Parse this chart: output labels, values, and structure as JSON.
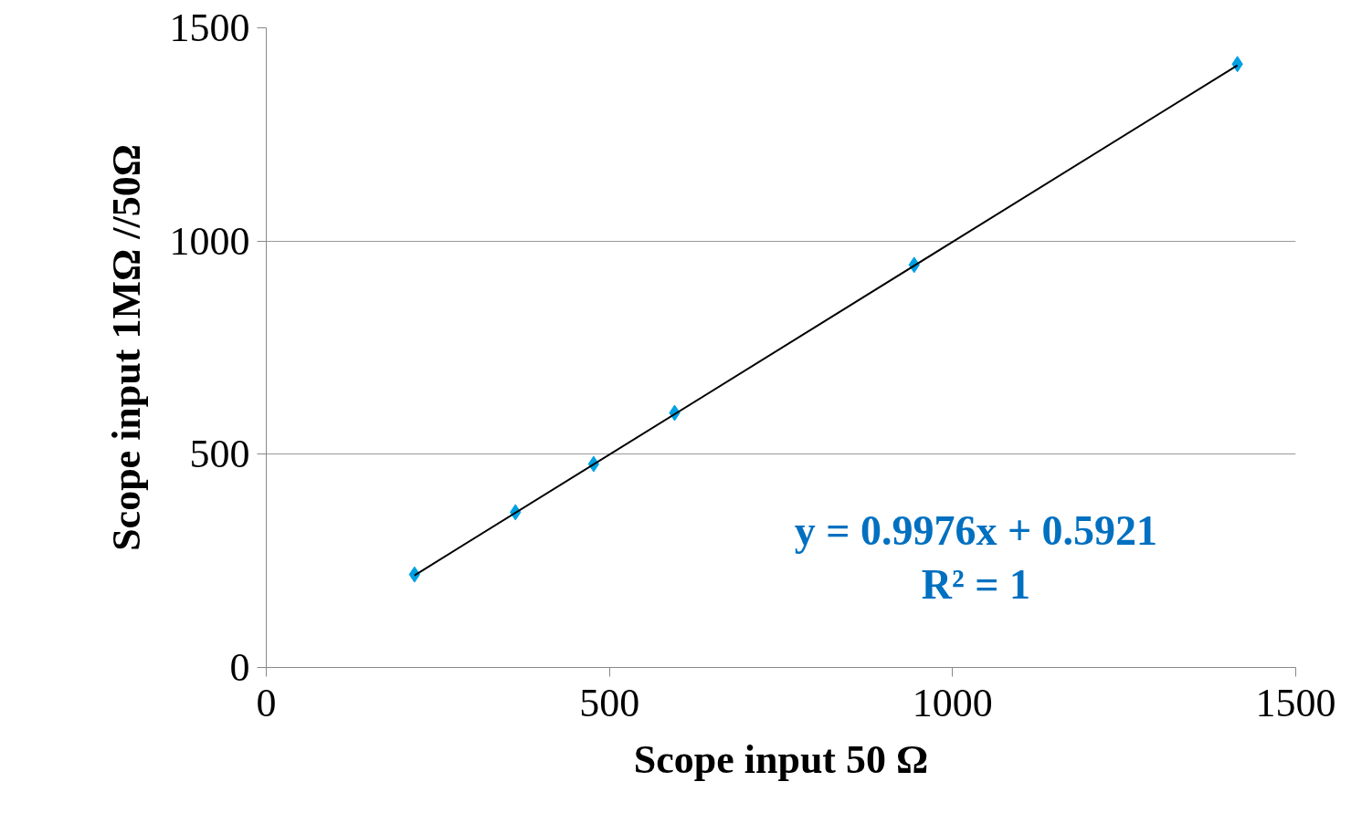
{
  "chart_data": {
    "type": "scatter",
    "xlabel": "Scope input 50 Ω",
    "ylabel": "Scope input 1MΩ //50Ω",
    "x": [
      216,
      363,
      477,
      595,
      944,
      1415
    ],
    "series": [
      {
        "color": "#00a0e3",
        "values": [
          218,
          364,
          477,
          597,
          944,
          1415
        ],
        "marker": "diamond"
      },
      {
        "type": "line",
        "color": "#000000",
        "x": [
          216,
          1415
        ],
        "values": [
          216,
          1412
        ],
        "marker": "none",
        "line_style": "solid"
      }
    ],
    "annotations": [
      "y = 0.9976x + 0.5921",
      "R² = 1"
    ],
    "xlim": [
      0,
      1500
    ],
    "ylim": [
      0,
      1500
    ],
    "xticks": [
      0,
      500,
      1000,
      1500
    ],
    "yticks": [
      0,
      500,
      1000,
      1500
    ],
    "grid": "y"
  }
}
